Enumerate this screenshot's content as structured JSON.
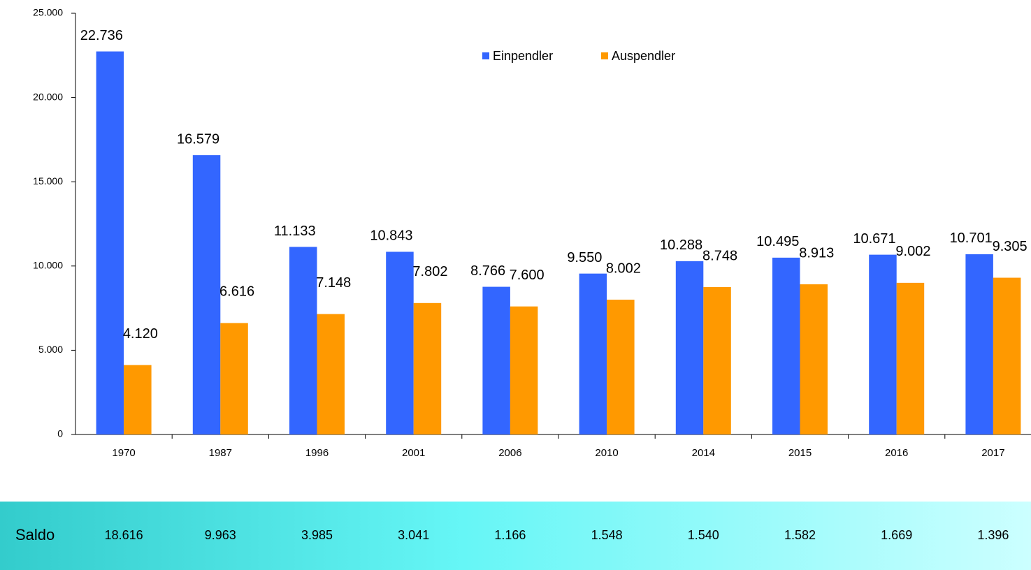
{
  "chart_data": {
    "type": "bar",
    "categories": [
      "1970",
      "1987",
      "1996",
      "2001",
      "2006",
      "2010",
      "2014",
      "2015",
      "2016",
      "2017"
    ],
    "series": [
      {
        "name": "Einpendler",
        "color": "#3366ff",
        "values": [
          22736,
          16579,
          11133,
          10843,
          8766,
          9550,
          10288,
          10495,
          10671,
          10701
        ],
        "value_labels": [
          "22.736",
          "16.579",
          "11.133",
          "10.843",
          "8.766",
          "9.550",
          "10.288",
          "10.495",
          "10.671",
          "10.701"
        ]
      },
      {
        "name": "Auspendler",
        "color": "#ff9900",
        "values": [
          4120,
          6616,
          7148,
          7802,
          7600,
          8002,
          8748,
          8913,
          9002,
          9305
        ],
        "value_labels": [
          "4.120",
          "6.616",
          "7.148",
          "7.802",
          "7.600",
          "8.002",
          "8.748",
          "8.913",
          "9.002",
          "9.305"
        ]
      }
    ],
    "ylim": [
      0,
      25000
    ],
    "yticks": [
      0,
      {
        "value": 5000,
        "label": "5.000"
      },
      {
        "value": 10000,
        "label": "10.000"
      },
      {
        "value": 15000,
        "label": "15.000"
      },
      {
        "value": 20000,
        "label": "20.000"
      },
      {
        "value": 25000,
        "label": "25.000"
      }
    ],
    "legend": "top",
    "saldo": {
      "label": "Saldo",
      "values": [
        18616,
        9963,
        3985,
        3041,
        1166,
        1548,
        1540,
        1582,
        1669,
        1396
      ],
      "value_labels": [
        "18.616",
        "9.963",
        "3.985",
        "3.041",
        "1.166",
        "1.548",
        "1.540",
        "1.582",
        "1.669",
        "1.396"
      ]
    }
  }
}
